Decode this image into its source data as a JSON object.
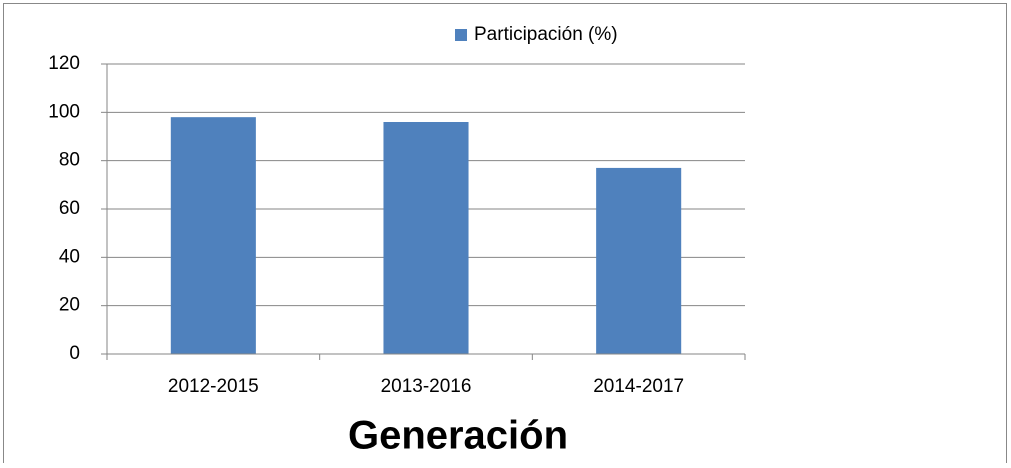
{
  "chart_data": {
    "type": "bar",
    "xlabel": "Generación",
    "categories": [
      "2012-2015",
      "2013-2016",
      "2014-2017"
    ],
    "series": [
      {
        "name": "Participación (%)",
        "color": "#4f81bd",
        "values": [
          98,
          96,
          77
        ]
      }
    ],
    "ylim": [
      0,
      120
    ],
    "yticks": [
      0,
      20,
      40,
      60,
      80,
      100,
      120
    ],
    "grid": true,
    "legend": "top"
  }
}
